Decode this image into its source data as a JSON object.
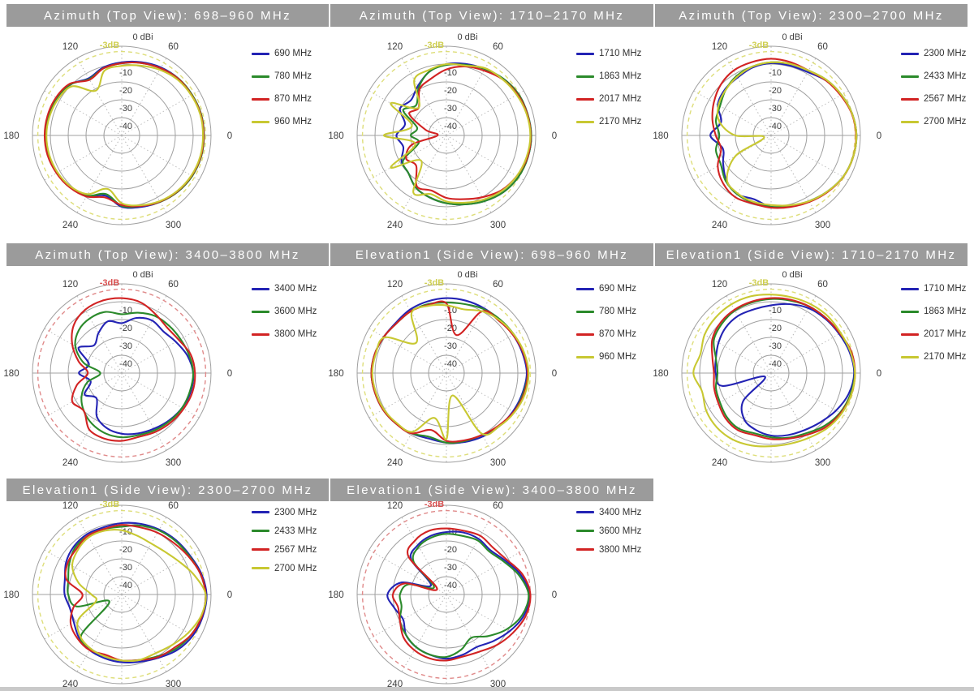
{
  "styles": {
    "title_bar_color": "#9b9b9b",
    "title_text_color": "#ffffff",
    "grid_color": "#a0a0a0",
    "spoke_color": "#b8b8b8",
    "axis_text_color": "#3c3c3c",
    "legend_text_color": "#333333",
    "footer_strip_color": "#c9c9c9",
    "series_palette": {
      "blue": "#2323b4",
      "green": "#2b8a2b",
      "red": "#d22323",
      "yellow": "#c8c832"
    },
    "threshold_palette": {
      "yellow": {
        "ring": "#dede7a",
        "label": "#cfcf50"
      },
      "red": {
        "ring": "#e08a8a",
        "label": "#d94f4f"
      }
    }
  },
  "chart_data": {
    "type": "polar-line",
    "unit": "dBi",
    "angle_step_deg": 15,
    "rmin_db": -50,
    "rmax_db": 0,
    "radial_tick_labels": [
      "0 dBi",
      "-10",
      "-20",
      "-30",
      "-40"
    ],
    "radial_tick_values": [
      0,
      -10,
      -20,
      -30,
      -40
    ],
    "angle_tick_labels": [
      "0",
      "60",
      "120",
      "180",
      "240",
      "300"
    ],
    "threshold": {
      "label": "-3dB",
      "value_db": -3
    },
    "charts": [
      {
        "title": "Azimuth (Top View): 698–960 MHz",
        "row": 0,
        "col": 0,
        "threshold_color": "yellow",
        "series": [
          {
            "name": "690 MHz",
            "color": "blue",
            "db": [
              -4,
              -4,
              -4.5,
              -5,
              -6,
              -7.5,
              -9,
              -10.5,
              -13,
              -9.5,
              -8,
              -7.5,
              -7,
              -7.5,
              -8,
              -9,
              -11,
              -15,
              -10,
              -8.5,
              -7,
              -5.5,
              -4.5,
              -4
            ]
          },
          {
            "name": "780 MHz",
            "color": "green",
            "db": [
              -4,
              -4,
              -4.5,
              -5,
              -6.5,
              -8,
              -9.5,
              -11,
              -13.5,
              -9.5,
              -8,
              -7.5,
              -7.2,
              -7.5,
              -8,
              -9,
              -11,
              -16,
              -10.5,
              -9,
              -7,
              -5.5,
              -4.5,
              -4
            ]
          },
          {
            "name": "870 MHz",
            "color": "red",
            "db": [
              -4.2,
              -4.2,
              -4.8,
              -5.2,
              -6.5,
              -8,
              -9.5,
              -11,
              -14,
              -9,
              -7.5,
              -7,
              -6.8,
              -7,
              -7.8,
              -8.8,
              -10.5,
              -14,
              -11,
              -9,
              -7.2,
              -5.8,
              -4.8,
              -4.2
            ]
          },
          {
            "name": "960 MHz",
            "color": "yellow",
            "db": [
              -4.5,
              -4.5,
              -5,
              -5.8,
              -7.5,
              -9.5,
              -11,
              -12.5,
              -21,
              -11,
              -9,
              -8.2,
              -7.8,
              -8,
              -8.5,
              -9.5,
              -12,
              -19,
              -12,
              -9.5,
              -7.5,
              -6,
              -5,
              -4.5
            ]
          }
        ]
      },
      {
        "title": "Azimuth (Top View): 1710–2170 MHz",
        "row": 0,
        "col": 1,
        "threshold_color": "yellow",
        "series": [
          {
            "name": "1710 MHz",
            "color": "blue",
            "db": [
              -2.5,
              -3,
              -3.5,
              -5,
              -7,
              -8.5,
              -10,
              -13,
              -18,
              -22,
              -20,
              -26,
              -22,
              -25,
              -21,
              -20,
              -16,
              -14,
              -12,
              -10,
              -7.5,
              -5,
              -3.5,
              -2.8
            ]
          },
          {
            "name": "1863 MHz",
            "color": "green",
            "db": [
              -2.5,
              -3,
              -3.5,
              -5,
              -7,
              -9,
              -10.5,
              -13,
              -19,
              -26,
              -22,
              -33,
              -30,
              -34,
              -22,
              -20,
              -16,
              -14,
              -12,
              -10,
              -7.5,
              -5,
              -3.5,
              -2.8
            ]
          },
          {
            "name": "2017 MHz",
            "color": "red",
            "db": [
              -2.8,
              -3.2,
              -4,
              -5.5,
              -8,
              -10,
              -13,
              -17,
              -20,
              -28,
              -26,
              -38,
              -45,
              -30,
              -24,
              -26,
              -17,
              -18,
              -15,
              -13,
              -10,
              -6.5,
              -4.5,
              -3
            ]
          },
          {
            "name": "2170 MHz",
            "color": "yellow",
            "db": [
              -3,
              -3.5,
              -4.5,
              -5.5,
              -6.5,
              -9.5,
              -10,
              -12,
              -14,
              -28,
              -14,
              -30,
              -15,
              -32,
              -14,
              -30,
              -13,
              -16,
              -13,
              -11,
              -8.5,
              -6,
              -4.5,
              -3.5
            ]
          }
        ]
      },
      {
        "title": "Azimuth (Top View): 2300–2700 MHz",
        "row": 0,
        "col": 2,
        "threshold_color": "yellow",
        "series": [
          {
            "name": "2300 MHz",
            "color": "blue",
            "db": [
              -2.2,
              -3,
              -4.5,
              -6.5,
              -9,
              -9.5,
              -9.5,
              -10.5,
              -12.5,
              -13.5,
              -15.5,
              -21,
              -16,
              -22,
              -19,
              -14.5,
              -12,
              -13,
              -10,
              -9,
              -7.5,
              -5.5,
              -3.5,
              -2.5
            ]
          },
          {
            "name": "2433 MHz",
            "color": "green",
            "db": [
              -2.2,
              -3,
              -4.5,
              -6,
              -8,
              -8.5,
              -9,
              -10,
              -11.5,
              -14,
              -17,
              -18,
              -21,
              -18,
              -17.5,
              -14,
              -12,
              -11,
              -10,
              -9,
              -7.5,
              -5.5,
              -3.5,
              -2.5
            ]
          },
          {
            "name": "2567 MHz",
            "color": "red",
            "db": [
              -2.4,
              -3.2,
              -5,
              -6.5,
              -8,
              -7.5,
              -7,
              -7.5,
              -8,
              -10,
              -13,
              -16,
              -19,
              -21,
              -15.5,
              -12,
              -10,
              -10.5,
              -9.5,
              -8.5,
              -7,
              -5.2,
              -3.4,
              -2.5
            ]
          },
          {
            "name": "2700 MHz",
            "color": "yellow",
            "db": [
              -2.2,
              -3,
              -4.5,
              -6,
              -8,
              -8.5,
              -9,
              -10,
              -12,
              -14,
              -16,
              -20,
              -30,
              -46,
              -27,
              -15,
              -12.5,
              -11.5,
              -11,
              -9.5,
              -7.5,
              -5.5,
              -3.5,
              -2.5
            ]
          }
        ]
      },
      {
        "title": "Azimuth (Top View): 3400–3800 MHz",
        "row": 1,
        "col": 0,
        "threshold_color": "red",
        "series": [
          {
            "name": "3400 MHz",
            "color": "blue",
            "db": [
              -10,
              -12,
              -15,
              -17,
              -16,
              -18,
              -22,
              -20,
              -24,
              -28,
              -22,
              -31,
              -26,
              -32,
              -26,
              -30,
              -22,
              -18,
              -16,
              -15,
              -14,
              -12.5,
              -11,
              -10
            ]
          },
          {
            "name": "3600 MHz",
            "color": "green",
            "db": [
              -10,
              -11,
              -12,
              -12.5,
              -13,
              -15,
              -17,
              -14.5,
              -14.5,
              -16,
              -20,
              -28,
              -38,
              -30,
              -24,
              -20,
              -17,
              -15,
              -14,
              -14,
              -13,
              -12,
              -11,
              -10.5
            ]
          },
          {
            "name": "3800 MHz",
            "color": "red",
            "db": [
              -9,
              -10,
              -13,
              -14,
              -12,
              -9,
              -8,
              -8,
              -9,
              -12,
              -18,
              -25,
              -31,
              -24,
              -18,
              -20,
              -13.5,
              -12,
              -12,
              -13,
              -12,
              -11,
              -10,
              -9
            ]
          }
        ]
      },
      {
        "title": "Elevation1 (Side View): 698–960 MHz",
        "row": 1,
        "col": 1,
        "threshold_color": "yellow",
        "series": [
          {
            "name": "690 MHz",
            "color": "blue",
            "db": [
              -5,
              -6,
              -7,
              -8,
              -8,
              -8,
              -8,
              -8.5,
              -9,
              -10,
              -9.5,
              -8.5,
              -8,
              -8.5,
              -9,
              -10,
              -11,
              -12,
              -11,
              -10,
              -9,
              -8,
              -7,
              -6
            ]
          },
          {
            "name": "780 MHz",
            "color": "green",
            "db": [
              -4.5,
              -5.5,
              -6.5,
              -7.5,
              -8.5,
              -10,
              -10.5,
              -10,
              -10,
              -10.5,
              -9.5,
              -8.5,
              -8,
              -8.5,
              -9,
              -10,
              -11,
              -13,
              -11,
              -10.5,
              -10,
              -8,
              -6.5,
              -5.5
            ]
          },
          {
            "name": "870 MHz",
            "color": "red",
            "db": [
              -4.5,
              -5.5,
              -7,
              -8.5,
              -10,
              -28,
              -11,
              -10.5,
              -10,
              -10.5,
              -9.5,
              -8.5,
              -8,
              -8.5,
              -9,
              -10,
              -11,
              -17,
              -12,
              -11,
              -10,
              -8.5,
              -6.5,
              -5
            ]
          },
          {
            "name": "960 MHz",
            "color": "yellow",
            "db": [
              -4,
              -5,
              -6.5,
              -8,
              -10,
              -13,
              -12,
              -11,
              -11,
              -26,
              -10,
              -9,
              -8.5,
              -9,
              -9.5,
              -10.5,
              -12,
              -24,
              -13,
              -37,
              -11,
              -8,
              -6,
              -4.5
            ]
          }
        ]
      },
      {
        "title": "Elevation1 (Side View): 1710–2170 MHz",
        "row": 1,
        "col": 2,
        "threshold_color": "yellow",
        "series": [
          {
            "name": "1710 MHz",
            "color": "blue",
            "db": [
              -3.5,
              -4.5,
              -6,
              -7,
              -8,
              -10,
              -12,
              -13,
              -13,
              -14,
              -16,
              -18,
              -19,
              -22,
              -46,
              -28,
              -20,
              -17,
              -15,
              -14,
              -13,
              -11,
              -8,
              -5
            ]
          },
          {
            "name": "1863 MHz",
            "color": "green",
            "db": [
              -3.2,
              -3.8,
              -5.5,
              -6.5,
              -7,
              -8,
              -8.5,
              -9,
              -9.5,
              -11,
              -13,
              -18,
              -20,
              -18,
              -17,
              -15,
              -14,
              -15,
              -14,
              -12.5,
              -11,
              -8,
              -5.5,
              -4
            ]
          },
          {
            "name": "2017 MHz",
            "color": "red",
            "db": [
              -3,
              -3.5,
              -5.5,
              -6.5,
              -7,
              -7.5,
              -8,
              -8.5,
              -9,
              -10,
              -12,
              -16,
              -18,
              -17,
              -16,
              -14,
              -13,
              -14,
              -13,
              -12,
              -10,
              -7,
              -5,
              -3.5
            ]
          },
          {
            "name": "2170 MHz",
            "color": "yellow",
            "db": [
              -3,
              -4,
              -5,
              -5,
              -5.5,
              -6,
              -6,
              -5.5,
              -5.5,
              -6,
              -7,
              -9,
              -6.5,
              -10,
              -8,
              -7,
              -7,
              -8,
              -9,
              -9,
              -8,
              -6,
              -4.5,
              -3.5
            ]
          }
        ]
      },
      {
        "title": "Elevation1 (Side View): 2300–2700 MHz",
        "row": 2,
        "col": 0,
        "threshold_color": "yellow",
        "series": [
          {
            "name": "2300 MHz",
            "color": "blue",
            "db": [
              -2.5,
              -4,
              -6,
              -7,
              -8,
              -9,
              -10,
              -11,
              -11,
              -12,
              -14,
              -17,
              -18,
              -20,
              -19,
              -16,
              -14,
              -13,
              -12,
              -11,
              -9,
              -6,
              -4,
              -3
            ]
          },
          {
            "name": "2433 MHz",
            "color": "green",
            "db": [
              -3,
              -4.5,
              -6.5,
              -7.5,
              -8.5,
              -10,
              -12,
              -12,
              -12,
              -13,
              -16,
              -19,
              -20,
              -24,
              -42,
              -18,
              -15,
              -14,
              -13,
              -12,
              -10,
              -7,
              -5,
              -3.5
            ]
          },
          {
            "name": "2567 MHz",
            "color": "red",
            "db": [
              -3,
              -4.5,
              -7,
              -9,
              -10,
              -11,
              -11,
              -12,
              -12,
              -14,
              -15,
              -18,
              -28,
              -22,
              -17,
              -15,
              -14,
              -15,
              -13,
              -12,
              -9.5,
              -8,
              -5,
              -3.5
            ]
          },
          {
            "name": "2700 MHz",
            "color": "yellow",
            "db": [
              -3,
              -8,
              -13,
              -16,
              -17,
              -16,
              -14,
              -13,
              -13,
              -15,
              -18,
              -25,
              -33,
              -35,
              -22,
              -17,
              -15,
              -14,
              -13,
              -12,
              -12,
              -10,
              -7,
              -4
            ]
          }
        ]
      },
      {
        "title": "Elevation1 (Side View): 3400–3800 MHz",
        "row": 2,
        "col": 1,
        "threshold_color": "red",
        "series": [
          {
            "name": "3400 MHz",
            "color": "blue",
            "db": [
              -3.5,
              -7,
              -12,
              -15,
              -14,
              -14,
              -15,
              -16,
              -18,
              -22,
              -40,
              -24,
              -17,
              -20,
              -22,
              -18,
              -16,
              -15,
              -14,
              -15,
              -16,
              -13,
              -9,
              -5
            ]
          },
          {
            "name": "3600 MHz",
            "color": "green",
            "db": [
              -4,
              -8,
              -13,
              -16,
              -15,
              -16,
              -16,
              -17,
              -19,
              -24,
              -42,
              -28,
              -24,
              -24,
              -20,
              -18,
              -16,
              -15,
              -15,
              -18,
              -22,
              -17,
              -11,
              -6
            ]
          },
          {
            "name": "3800 MHz",
            "color": "red",
            "db": [
              -3,
              -6,
              -11,
              -13,
              -12,
              -13,
              -13,
              -13,
              -15,
              -20,
              -44,
              -26,
              -20,
              -22,
              -20,
              -16,
              -14,
              -13,
              -13,
              -14,
              -13,
              -10,
              -7,
              -4
            ]
          }
        ]
      }
    ]
  }
}
